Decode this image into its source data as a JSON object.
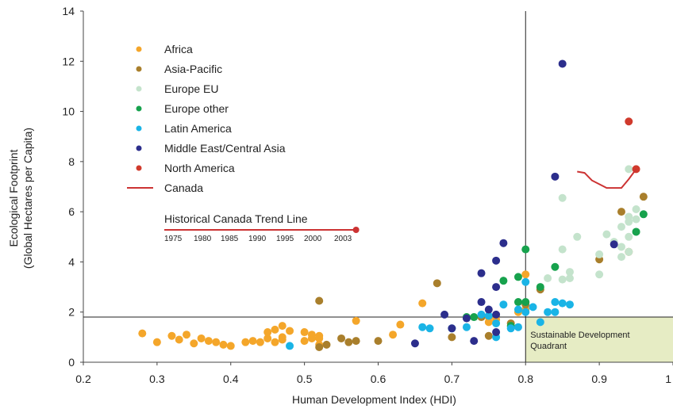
{
  "chart_data": {
    "type": "scatter",
    "xlabel": "Human Development Index (HDI)",
    "ylabel_lines": [
      "Ecological Footprint",
      "(Global Hectares per Capita)"
    ],
    "xlim": [
      0.2,
      1.0
    ],
    "ylim": [
      0,
      14
    ],
    "x_ticks": [
      0.2,
      0.3,
      0.4,
      0.5,
      0.6,
      0.7,
      0.8,
      0.9,
      1
    ],
    "x_tick_labels": [
      "0.2",
      "0.3",
      "0.4",
      "0.5",
      "0.6",
      "0.7",
      "0.8",
      "0.9",
      "1"
    ],
    "y_ticks": [
      0,
      2,
      4,
      6,
      8,
      10,
      12,
      14
    ],
    "y_tick_labels": [
      "0",
      "2",
      "4",
      "6",
      "8",
      "10",
      "12",
      "14"
    ],
    "grid": false,
    "legend_position": "top-left",
    "reference_lines": {
      "hdi_threshold": 0.8,
      "footprint_threshold": 1.8
    },
    "quadrant_label_lines": [
      "Sustainable Development",
      "Quadrant"
    ],
    "quadrant_fill": "#e6ecc4",
    "series": [
      {
        "name": "Africa",
        "color": "#f4a62a",
        "points": [
          [
            0.28,
            1.15
          ],
          [
            0.3,
            0.8
          ],
          [
            0.32,
            1.05
          ],
          [
            0.33,
            0.9
          ],
          [
            0.34,
            1.1
          ],
          [
            0.35,
            0.75
          ],
          [
            0.36,
            0.95
          ],
          [
            0.37,
            0.85
          ],
          [
            0.38,
            0.8
          ],
          [
            0.39,
            0.7
          ],
          [
            0.4,
            0.65
          ],
          [
            0.42,
            0.8
          ],
          [
            0.43,
            0.85
          ],
          [
            0.44,
            0.8
          ],
          [
            0.45,
            0.95
          ],
          [
            0.45,
            1.2
          ],
          [
            0.46,
            1.3
          ],
          [
            0.46,
            0.8
          ],
          [
            0.47,
            1.45
          ],
          [
            0.47,
            1.0
          ],
          [
            0.47,
            0.9
          ],
          [
            0.48,
            1.25
          ],
          [
            0.5,
            1.2
          ],
          [
            0.5,
            0.85
          ],
          [
            0.51,
            1.1
          ],
          [
            0.51,
            0.95
          ],
          [
            0.52,
            0.95
          ],
          [
            0.52,
            1.05
          ],
          [
            0.52,
            0.7
          ],
          [
            0.57,
            1.65
          ],
          [
            0.62,
            1.1
          ],
          [
            0.63,
            1.5
          ],
          [
            0.66,
            2.35
          ],
          [
            0.75,
            1.8
          ],
          [
            0.75,
            1.6
          ],
          [
            0.76,
            1.7
          ],
          [
            0.79,
            2.0
          ],
          [
            0.8,
            3.5
          ],
          [
            0.8,
            2.1
          ]
        ]
      },
      {
        "name": "Asia-Pacific",
        "color": "#a97f2c",
        "points": [
          [
            0.52,
            2.45
          ],
          [
            0.52,
            0.6
          ],
          [
            0.53,
            0.7
          ],
          [
            0.55,
            0.95
          ],
          [
            0.56,
            0.8
          ],
          [
            0.57,
            0.85
          ],
          [
            0.6,
            0.85
          ],
          [
            0.68,
            3.15
          ],
          [
            0.7,
            1.0
          ],
          [
            0.74,
            1.8
          ],
          [
            0.75,
            1.05
          ],
          [
            0.78,
            1.55
          ],
          [
            0.8,
            2.3
          ],
          [
            0.82,
            2.9
          ],
          [
            0.9,
            4.1
          ],
          [
            0.93,
            6.0
          ],
          [
            0.94,
            4.4
          ],
          [
            0.96,
            6.6
          ]
        ]
      },
      {
        "name": "Europe EU",
        "color": "#c4e3cc",
        "points": [
          [
            0.83,
            3.35
          ],
          [
            0.85,
            6.55
          ],
          [
            0.85,
            4.5
          ],
          [
            0.85,
            3.3
          ],
          [
            0.86,
            3.6
          ],
          [
            0.86,
            3.35
          ],
          [
            0.87,
            5.0
          ],
          [
            0.9,
            3.5
          ],
          [
            0.9,
            4.3
          ],
          [
            0.91,
            5.1
          ],
          [
            0.92,
            4.8
          ],
          [
            0.93,
            5.4
          ],
          [
            0.93,
            4.6
          ],
          [
            0.93,
            4.2
          ],
          [
            0.94,
            7.7
          ],
          [
            0.94,
            5.6
          ],
          [
            0.94,
            5.8
          ],
          [
            0.94,
            5.0
          ],
          [
            0.94,
            4.4
          ],
          [
            0.95,
            6.1
          ],
          [
            0.95,
            5.7
          ],
          [
            0.95,
            5.2
          ]
        ]
      },
      {
        "name": "Europe other",
        "color": "#17a24d",
        "points": [
          [
            0.72,
            1.8
          ],
          [
            0.73,
            1.8
          ],
          [
            0.77,
            3.25
          ],
          [
            0.78,
            1.45
          ],
          [
            0.79,
            3.4
          ],
          [
            0.79,
            2.4
          ],
          [
            0.8,
            4.5
          ],
          [
            0.8,
            2.4
          ],
          [
            0.82,
            3.0
          ],
          [
            0.84,
            3.8
          ],
          [
            0.95,
            5.2
          ],
          [
            0.96,
            5.9
          ]
        ]
      },
      {
        "name": "Latin America",
        "color": "#1ab4e6",
        "points": [
          [
            0.48,
            0.65
          ],
          [
            0.66,
            1.4
          ],
          [
            0.67,
            1.35
          ],
          [
            0.7,
            1.35
          ],
          [
            0.72,
            1.4
          ],
          [
            0.74,
            1.9
          ],
          [
            0.75,
            1.85
          ],
          [
            0.76,
            1.55
          ],
          [
            0.76,
            1.0
          ],
          [
            0.77,
            2.3
          ],
          [
            0.78,
            1.35
          ],
          [
            0.79,
            2.1
          ],
          [
            0.79,
            1.4
          ],
          [
            0.8,
            3.2
          ],
          [
            0.8,
            2.0
          ],
          [
            0.81,
            2.2
          ],
          [
            0.82,
            1.6
          ],
          [
            0.83,
            2.0
          ],
          [
            0.84,
            2.0
          ],
          [
            0.84,
            2.4
          ],
          [
            0.85,
            2.35
          ],
          [
            0.86,
            2.3
          ]
        ]
      },
      {
        "name": "Middle East/Central Asia",
        "color": "#2c2e8c",
        "points": [
          [
            0.65,
            0.75
          ],
          [
            0.69,
            1.9
          ],
          [
            0.7,
            1.35
          ],
          [
            0.72,
            1.75
          ],
          [
            0.73,
            0.85
          ],
          [
            0.74,
            3.55
          ],
          [
            0.74,
            2.4
          ],
          [
            0.75,
            2.1
          ],
          [
            0.76,
            4.05
          ],
          [
            0.76,
            3.0
          ],
          [
            0.76,
            1.9
          ],
          [
            0.76,
            1.2
          ],
          [
            0.77,
            4.75
          ],
          [
            0.84,
            7.4
          ],
          [
            0.85,
            11.9
          ],
          [
            0.92,
            4.7
          ]
        ]
      },
      {
        "name": "North America",
        "color": "#d03a2c",
        "points": [
          [
            0.94,
            9.6
          ],
          [
            0.95,
            7.7
          ]
        ]
      }
    ],
    "canada_line": {
      "name": "Canada",
      "color": "#cc3333",
      "points": [
        [
          0.87,
          7.6
        ],
        [
          0.88,
          7.55
        ],
        [
          0.89,
          7.25
        ],
        [
          0.91,
          6.95
        ],
        [
          0.93,
          6.95
        ],
        [
          0.94,
          7.3
        ],
        [
          0.95,
          7.7
        ]
      ]
    },
    "historical_trend": {
      "title": "Historical Canada Trend Line",
      "years": [
        "1975",
        "1980",
        "1985",
        "1990",
        "1995",
        "2000",
        "2003"
      ]
    }
  }
}
